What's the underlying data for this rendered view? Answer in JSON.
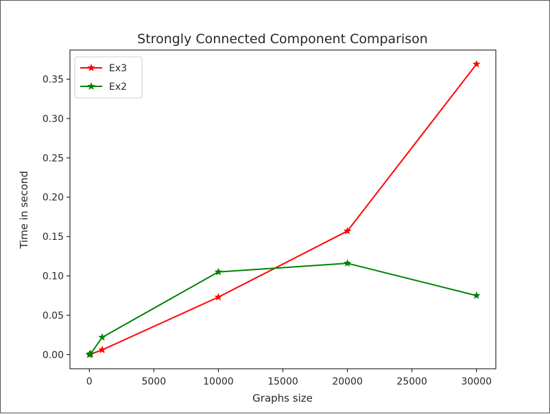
{
  "chart_data": {
    "type": "line",
    "title": "Strongly Connected Component Comparison",
    "xlabel": "Graphs size",
    "ylabel": "Time in second",
    "xlim": [
      -1500,
      31500
    ],
    "ylim": [
      -0.018,
      0.387
    ],
    "xticks": [
      0,
      5000,
      10000,
      15000,
      20000,
      25000,
      30000
    ],
    "xtick_labels": [
      "0",
      "5000",
      "10000",
      "15000",
      "20000",
      "25000",
      "30000"
    ],
    "yticks": [
      0.0,
      0.05,
      0.1,
      0.15,
      0.2,
      0.25,
      0.3,
      0.35
    ],
    "ytick_labels": [
      "0.00",
      "0.05",
      "0.10",
      "0.15",
      "0.20",
      "0.25",
      "0.30",
      "0.35"
    ],
    "grid": false,
    "legend_position": "top-left",
    "series": [
      {
        "name": "Ex3",
        "color": "#ff0000",
        "marker": "star",
        "x": [
          10,
          100,
          1000,
          10000,
          20000,
          30000
        ],
        "y": [
          0.0,
          0.0005,
          0.006,
          0.073,
          0.157,
          0.369
        ]
      },
      {
        "name": "Ex2",
        "color": "#008000",
        "marker": "star",
        "x": [
          10,
          100,
          1000,
          10000,
          20000,
          30000
        ],
        "y": [
          0.0,
          0.001,
          0.022,
          0.105,
          0.116,
          0.075
        ]
      }
    ]
  }
}
